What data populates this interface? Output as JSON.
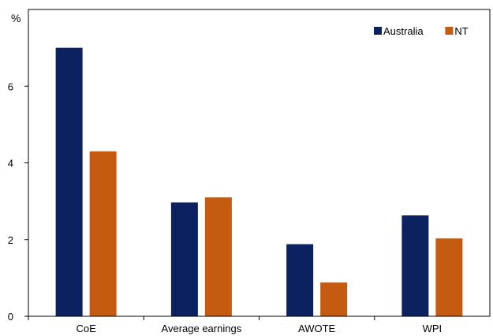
{
  "chart_data": {
    "type": "bar",
    "categories": [
      "CoE",
      "Average earnings",
      "AWOTE",
      "WPI"
    ],
    "series": [
      {
        "name": "Australia",
        "color": "#0b2160",
        "values": [
          7.0,
          2.97,
          1.88,
          2.63
        ]
      },
      {
        "name": "NT",
        "color": "#c55a11",
        "values": [
          4.3,
          3.1,
          0.88,
          2.03
        ]
      }
    ],
    "ylabel": "%",
    "ylim": [
      0,
      8
    ],
    "yticks": [
      0,
      2,
      4,
      6
    ],
    "grid": false,
    "legend_position": "top-right"
  }
}
